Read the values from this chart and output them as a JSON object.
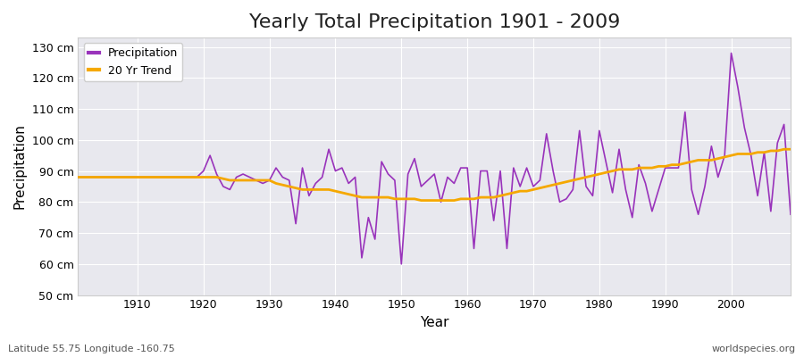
{
  "title": "Yearly Total Precipitation 1901 - 2009",
  "xlabel": "Year",
  "ylabel": "Precipitation",
  "subtitle": "Latitude 55.75 Longitude -160.75",
  "watermark": "worldspecies.org",
  "years": [
    1901,
    1902,
    1903,
    1904,
    1905,
    1906,
    1907,
    1908,
    1909,
    1910,
    1911,
    1912,
    1913,
    1914,
    1915,
    1916,
    1917,
    1918,
    1919,
    1920,
    1921,
    1922,
    1923,
    1924,
    1925,
    1926,
    1927,
    1928,
    1929,
    1930,
    1931,
    1932,
    1933,
    1934,
    1935,
    1936,
    1937,
    1938,
    1939,
    1940,
    1941,
    1942,
    1943,
    1944,
    1945,
    1946,
    1947,
    1948,
    1949,
    1950,
    1951,
    1952,
    1953,
    1954,
    1955,
    1956,
    1957,
    1958,
    1959,
    1960,
    1961,
    1962,
    1963,
    1964,
    1965,
    1966,
    1967,
    1968,
    1969,
    1970,
    1971,
    1972,
    1973,
    1974,
    1975,
    1976,
    1977,
    1978,
    1979,
    1980,
    1981,
    1982,
    1983,
    1984,
    1985,
    1986,
    1987,
    1988,
    1989,
    1990,
    1991,
    1992,
    1993,
    1994,
    1995,
    1996,
    1997,
    1998,
    1999,
    2000,
    2001,
    2002,
    2003,
    2004,
    2005,
    2006,
    2007,
    2008,
    2009
  ],
  "precip": [
    88,
    88,
    88,
    88,
    88,
    88,
    88,
    88,
    88,
    88,
    88,
    88,
    88,
    88,
    88,
    88,
    88,
    88,
    88,
    90,
    95,
    89,
    85,
    84,
    88,
    89,
    88,
    87,
    86,
    87,
    91,
    88,
    87,
    73,
    91,
    82,
    86,
    88,
    97,
    90,
    91,
    86,
    88,
    62,
    75,
    68,
    93,
    89,
    87,
    60,
    89,
    94,
    85,
    87,
    89,
    80,
    88,
    86,
    91,
    91,
    65,
    90,
    90,
    74,
    90,
    65,
    91,
    85,
    91,
    85,
    87,
    102,
    90,
    80,
    81,
    84,
    103,
    85,
    82,
    103,
    93,
    83,
    97,
    84,
    75,
    92,
    86,
    77,
    84,
    91,
    91,
    91,
    109,
    84,
    76,
    85,
    98,
    88,
    95,
    128,
    117,
    104,
    95,
    82,
    96,
    77,
    99,
    105,
    76
  ],
  "trend": [
    88.0,
    88.0,
    88.0,
    88.0,
    88.0,
    88.0,
    88.0,
    88.0,
    88.0,
    88.0,
    88.0,
    88.0,
    88.0,
    88.0,
    88.0,
    88.0,
    88.0,
    88.0,
    88.0,
    88.0,
    88.0,
    88.0,
    87.5,
    87.0,
    87.0,
    87.0,
    87.0,
    87.0,
    87.0,
    87.0,
    86.0,
    85.5,
    85.0,
    84.5,
    84.0,
    84.0,
    84.0,
    84.0,
    84.0,
    83.5,
    83.0,
    82.5,
    82.0,
    81.5,
    81.5,
    81.5,
    81.5,
    81.5,
    81.0,
    81.0,
    81.0,
    81.0,
    80.5,
    80.5,
    80.5,
    80.5,
    80.5,
    80.5,
    81.0,
    81.0,
    81.0,
    81.5,
    81.5,
    81.5,
    82.0,
    82.5,
    83.0,
    83.5,
    83.5,
    84.0,
    84.5,
    85.0,
    85.5,
    86.0,
    86.5,
    87.0,
    87.5,
    88.0,
    88.5,
    89.0,
    89.5,
    90.0,
    90.5,
    90.5,
    90.5,
    91.0,
    91.0,
    91.0,
    91.5,
    91.5,
    92.0,
    92.0,
    92.5,
    93.0,
    93.5,
    93.5,
    93.5,
    94.0,
    94.5,
    95.0,
    95.5,
    95.5,
    95.5,
    96.0,
    96.0,
    96.5,
    96.5,
    97.0,
    97.0
  ],
  "precip_color": "#9933bb",
  "trend_color": "#f5a800",
  "fig_bg_color": "#ffffff",
  "plot_bg_color": "#e8e8ee",
  "grid_color": "#ffffff",
  "subtitle_color": "#555555",
  "watermark_color": "#555555",
  "ylim": [
    50,
    133
  ],
  "xlim": [
    1901,
    2009
  ],
  "yticks": [
    50,
    60,
    70,
    80,
    90,
    100,
    110,
    120,
    130
  ],
  "xticks": [
    1910,
    1920,
    1930,
    1940,
    1950,
    1960,
    1970,
    1980,
    1990,
    2000
  ],
  "title_fontsize": 16,
  "axis_label_fontsize": 11,
  "tick_fontsize": 9,
  "legend_fontsize": 9
}
